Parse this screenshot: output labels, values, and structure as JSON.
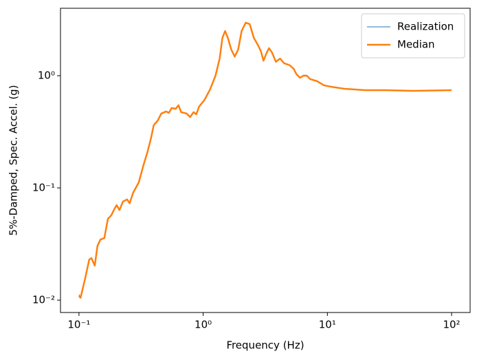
{
  "chart_data": {
    "type": "line",
    "xlabel": "Frequency (Hz)",
    "ylabel": "5%-Damped, Spec. Accel. (g)",
    "xscale": "log",
    "yscale": "log",
    "xlim": [
      0.071,
      141
    ],
    "ylim": [
      0.00776,
      3.99
    ],
    "xticks": [
      {
        "value": 0.1,
        "label": "10⁻¹"
      },
      {
        "value": 1,
        "label": "10⁰"
      },
      {
        "value": 10,
        "label": "10¹"
      },
      {
        "value": 100,
        "label": "10²"
      }
    ],
    "yticks": [
      {
        "value": 0.01,
        "label": "10⁻²"
      },
      {
        "value": 0.1,
        "label": "10⁻¹"
      },
      {
        "value": 1,
        "label": "10⁰"
      }
    ],
    "legend": "upper right",
    "x": [
      0.1,
      0.103,
      0.112,
      0.121,
      0.126,
      0.134,
      0.141,
      0.149,
      0.16,
      0.171,
      0.182,
      0.194,
      0.201,
      0.212,
      0.226,
      0.244,
      0.256,
      0.273,
      0.303,
      0.331,
      0.357,
      0.381,
      0.4,
      0.432,
      0.46,
      0.503,
      0.529,
      0.557,
      0.601,
      0.633,
      0.665,
      0.737,
      0.785,
      0.837,
      0.88,
      0.927,
      1.026,
      1.136,
      1.257,
      1.357,
      1.428,
      1.502,
      1.581,
      1.684,
      1.795,
      1.913,
      2.04,
      2.2,
      2.37,
      2.56,
      2.77,
      2.91,
      3.06,
      3.22,
      3.39,
      3.57,
      3.85,
      4.16,
      4.49,
      4.97,
      5.36,
      5.64,
      6.02,
      6.41,
      6.83,
      7.27,
      8.27,
      9.39,
      10.67,
      13.7,
      20.1,
      29.5,
      48.9,
      100
    ],
    "series": [
      {
        "name": "Realization",
        "color": "#1f77b4",
        "width": 1,
        "values": [
          0.0112,
          0.0106,
          0.0155,
          0.023,
          0.0237,
          0.0203,
          0.0305,
          0.0347,
          0.0357,
          0.053,
          0.057,
          0.0656,
          0.0703,
          0.0635,
          0.0755,
          0.079,
          0.073,
          0.0906,
          0.112,
          0.16,
          0.211,
          0.28,
          0.362,
          0.4,
          0.46,
          0.48,
          0.466,
          0.515,
          0.507,
          0.545,
          0.473,
          0.46,
          0.428,
          0.473,
          0.453,
          0.53,
          0.61,
          0.754,
          1.0,
          1.42,
          2.17,
          2.5,
          2.17,
          1.71,
          1.48,
          1.71,
          2.5,
          2.97,
          2.88,
          2.17,
          1.86,
          1.66,
          1.36,
          1.57,
          1.76,
          1.62,
          1.33,
          1.42,
          1.29,
          1.24,
          1.15,
          1.03,
          0.958,
          1.01,
          1.01,
          0.94,
          0.9,
          0.825,
          0.8,
          0.768,
          0.745,
          0.745,
          0.735,
          0.745
        ]
      },
      {
        "name": "Median",
        "color": "#ff7f0e",
        "width": 2.5,
        "values": [
          0.0109,
          0.0105,
          0.0155,
          0.023,
          0.0237,
          0.0203,
          0.0305,
          0.0347,
          0.0357,
          0.053,
          0.057,
          0.0656,
          0.0703,
          0.0635,
          0.0755,
          0.079,
          0.073,
          0.0906,
          0.112,
          0.16,
          0.211,
          0.28,
          0.362,
          0.4,
          0.46,
          0.48,
          0.466,
          0.515,
          0.507,
          0.545,
          0.473,
          0.46,
          0.428,
          0.473,
          0.453,
          0.53,
          0.61,
          0.754,
          1.0,
          1.42,
          2.17,
          2.5,
          2.17,
          1.71,
          1.48,
          1.71,
          2.5,
          2.97,
          2.88,
          2.17,
          1.86,
          1.66,
          1.36,
          1.57,
          1.76,
          1.62,
          1.33,
          1.42,
          1.29,
          1.24,
          1.15,
          1.03,
          0.958,
          1.0,
          1.0,
          0.932,
          0.893,
          0.82,
          0.798,
          0.765,
          0.743,
          0.743,
          0.733,
          0.743
        ]
      }
    ]
  }
}
